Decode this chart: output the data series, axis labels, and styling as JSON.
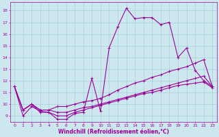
{
  "xlabel": "Windchill (Refroidissement éolien,°C)",
  "bg_color": "#cce8ee",
  "grid_color": "#a0c8d8",
  "line_color": "#990099",
  "xlim": [
    -0.5,
    23.5
  ],
  "ylim": [
    8.5,
    18.7
  ],
  "xticks": [
    0,
    1,
    2,
    3,
    4,
    5,
    6,
    7,
    8,
    9,
    10,
    11,
    12,
    13,
    14,
    15,
    16,
    17,
    18,
    19,
    20,
    21,
    22,
    23
  ],
  "yticks": [
    9,
    10,
    11,
    12,
    13,
    14,
    15,
    16,
    17,
    18
  ],
  "line1_x": [
    0,
    1,
    2,
    3,
    4,
    5,
    6,
    7,
    8,
    9,
    10,
    11,
    12,
    13,
    14,
    15,
    16,
    17,
    18,
    19,
    20,
    21,
    22,
    23
  ],
  "line1_y": [
    11.5,
    9.0,
    9.8,
    9.4,
    9.3,
    8.7,
    8.7,
    9.2,
    9.3,
    12.2,
    9.4,
    14.8,
    16.6,
    18.2,
    17.3,
    17.4,
    17.4,
    16.8,
    17.0,
    14.0,
    14.8,
    12.9,
    12.0,
    11.5
  ],
  "line2_x": [
    0,
    1,
    2,
    3,
    4,
    5,
    6,
    7,
    8,
    9,
    10,
    11,
    12,
    13,
    14,
    15,
    16,
    17,
    18,
    19,
    20,
    21,
    22,
    23
  ],
  "line2_y": [
    11.5,
    9.5,
    10.0,
    9.5,
    9.5,
    9.8,
    9.8,
    10.0,
    10.2,
    10.3,
    10.5,
    10.8,
    11.2,
    11.5,
    11.8,
    12.0,
    12.3,
    12.5,
    12.8,
    13.0,
    13.2,
    13.5,
    13.8,
    11.5
  ],
  "line3_x": [
    0,
    1,
    2,
    3,
    4,
    5,
    6,
    7,
    8,
    9,
    10,
    11,
    12,
    13,
    14,
    15,
    16,
    17,
    18,
    19,
    20,
    21,
    22,
    23
  ],
  "line3_y": [
    11.5,
    9.5,
    10.0,
    9.5,
    9.5,
    9.3,
    9.3,
    9.5,
    9.7,
    9.8,
    10.0,
    10.2,
    10.4,
    10.6,
    10.8,
    11.0,
    11.2,
    11.4,
    11.6,
    11.8,
    12.0,
    12.2,
    12.4,
    11.5
  ],
  "line4_x": [
    0,
    1,
    2,
    3,
    4,
    5,
    6,
    7,
    8,
    9,
    10,
    11,
    12,
    13,
    14,
    15,
    16,
    17,
    18,
    19,
    20,
    21,
    22,
    23
  ],
  "line4_y": [
    11.5,
    9.5,
    10.0,
    9.3,
    9.3,
    9.0,
    9.0,
    9.3,
    9.5,
    9.7,
    9.9,
    10.1,
    10.3,
    10.5,
    10.7,
    10.9,
    11.0,
    11.2,
    11.4,
    11.6,
    11.7,
    11.8,
    11.9,
    11.4
  ],
  "marker_size": 1.8,
  "linewidth": 0.8,
  "tick_fontsize": 4.5,
  "xlabel_fontsize": 5.5
}
